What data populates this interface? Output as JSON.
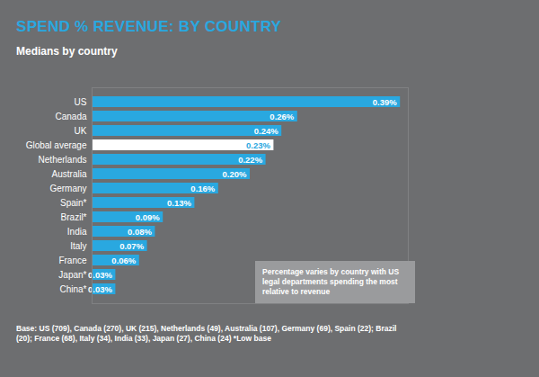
{
  "chart_data": {
    "type": "bar",
    "title": "SPEND % REVENUE: BY COUNTRY",
    "subtitle": "Medians by country",
    "orientation": "horizontal",
    "categories": [
      "US",
      "Canada",
      "UK",
      "Global average",
      "Netherlands",
      "Australia",
      "Germany",
      "Spain*",
      "Brazil*",
      "India",
      "Italy",
      "France",
      "Japan*",
      "China*"
    ],
    "values": [
      0.39,
      0.26,
      0.24,
      0.23,
      0.22,
      0.2,
      0.16,
      0.13,
      0.09,
      0.08,
      0.07,
      0.06,
      0.03,
      0.03
    ],
    "value_labels": [
      "0.39%",
      "0.26%",
      "0.24%",
      "0.23%",
      "0.22%",
      "0.20%",
      "0.16%",
      "0.13%",
      "0.09%",
      "0.08%",
      "0.07%",
      "0.06%",
      "0.03%",
      "0.03%"
    ],
    "colors": [
      "#29a8e0",
      "#29a8e0",
      "#29a8e0",
      "#ffffff",
      "#29a8e0",
      "#29a8e0",
      "#29a8e0",
      "#29a8e0",
      "#29a8e0",
      "#29a8e0",
      "#29a8e0",
      "#29a8e0",
      "#29a8e0",
      "#29a8e0"
    ],
    "xlim": [
      0,
      0.4
    ],
    "data_labels": true,
    "tick_labels": "y",
    "annotations": [
      "Percentage varies by country with US legal departments spending the most relative to revenue"
    ],
    "footnote": "Base: US (709), Canada (270), UK (215), Netherlands (49), Australia (107), Germany (69), Spain (22); Brazil (20); France (68), Italy (34), India (33), Japan (27), China (24) *Low base"
  }
}
